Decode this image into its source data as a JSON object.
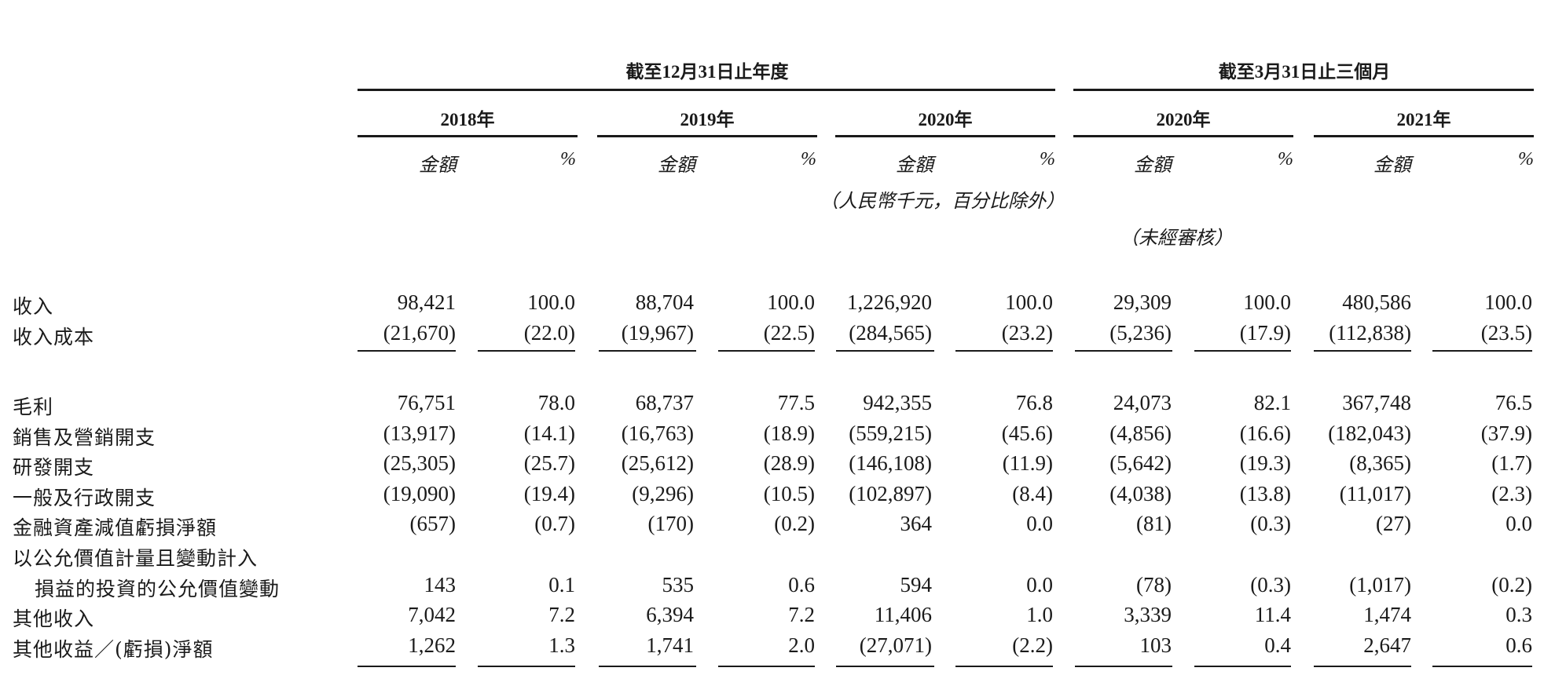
{
  "header": {
    "groups": [
      "截至12月31日止年度",
      "截至3月31日止三個月"
    ],
    "years": [
      "2018年",
      "2019年",
      "2020年",
      "2020年",
      "2021年"
    ],
    "amount_label": "金額",
    "percent_label": "%",
    "currency_note": "（人民幣千元，百分比除外）",
    "unaudited_note": "（未經審核）"
  },
  "rows": [
    {
      "label": "收入",
      "values": [
        "98,421",
        "100.0",
        "88,704",
        "100.0",
        "1,226,920",
        "100.0",
        "29,309",
        "100.0",
        "480,586",
        "100.0"
      ]
    },
    {
      "label": "收入成本",
      "values": [
        "(21,670)",
        "(22.0)",
        "(19,967)",
        "(22.5)",
        "(284,565)",
        "(23.2)",
        "(5,236)",
        "(17.9)",
        "(112,838)",
        "(23.5)"
      ]
    },
    {
      "label": "毛利",
      "values": [
        "76,751",
        "78.0",
        "68,737",
        "77.5",
        "942,355",
        "76.8",
        "24,073",
        "82.1",
        "367,748",
        "76.5"
      ]
    },
    {
      "label": "銷售及營銷開支",
      "values": [
        "(13,917)",
        "(14.1)",
        "(16,763)",
        "(18.9)",
        "(559,215)",
        "(45.6)",
        "(4,856)",
        "(16.6)",
        "(182,043)",
        "(37.9)"
      ]
    },
    {
      "label": "研發開支",
      "values": [
        "(25,305)",
        "(25.7)",
        "(25,612)",
        "(28.9)",
        "(146,108)",
        "(11.9)",
        "(5,642)",
        "(19.3)",
        "(8,365)",
        "(1.7)"
      ]
    },
    {
      "label": "一般及行政開支",
      "values": [
        "(19,090)",
        "(19.4)",
        "(9,296)",
        "(10.5)",
        "(102,897)",
        "(8.4)",
        "(4,038)",
        "(13.8)",
        "(11,017)",
        "(2.3)"
      ]
    },
    {
      "label": "金融資產減值虧損淨額",
      "values": [
        "(657)",
        "(0.7)",
        "(170)",
        "(0.2)",
        "364",
        "0.0",
        "(81)",
        "(0.3)",
        "(27)",
        "0.0"
      ]
    },
    {
      "label": "以公允價值計量且變動計入",
      "values": [
        "",
        "",
        "",
        "",
        "",
        "",
        "",
        "",
        "",
        ""
      ]
    },
    {
      "label": "損益的投資的公允價值變動",
      "values": [
        "143",
        "0.1",
        "535",
        "0.6",
        "594",
        "0.0",
        "(78)",
        "(0.3)",
        "(1,017)",
        "(0.2)"
      ]
    },
    {
      "label": "其他收入",
      "values": [
        "7,042",
        "7.2",
        "6,394",
        "7.2",
        "11,406",
        "1.0",
        "3,339",
        "11.4",
        "1,474",
        "0.3"
      ]
    },
    {
      "label": "其他收益／(虧損)淨額",
      "values": [
        "1,262",
        "1.3",
        "1,741",
        "2.0",
        "(27,071)",
        "(2.2)",
        "103",
        "0.4",
        "2,647",
        "0.6"
      ]
    }
  ]
}
